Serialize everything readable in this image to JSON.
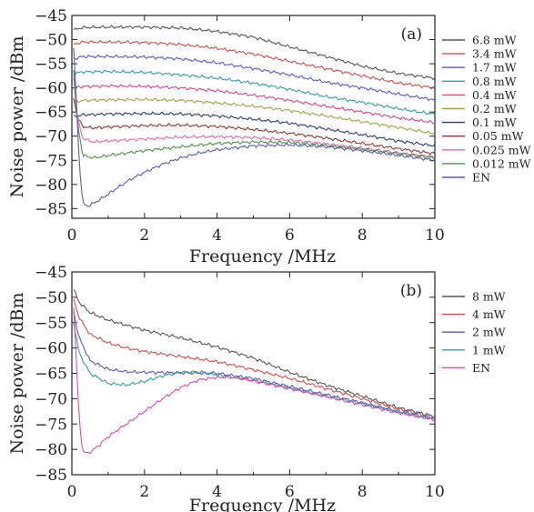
{
  "figure": {
    "panels": [
      "a",
      "b"
    ]
  },
  "chart_data": [
    {
      "type": "line",
      "panel_label": "(a)",
      "xlabel": "Frequency /MHz",
      "ylabel": "Noise power /dBm",
      "xlim": [
        0,
        10
      ],
      "ylim": [
        -87,
        -45
      ],
      "xticks": [
        0,
        2,
        4,
        6,
        8,
        10
      ],
      "yticks": [
        -45,
        -50,
        -55,
        -60,
        -65,
        -70,
        -75,
        -80,
        -85
      ],
      "legend_position": "right, outside plot",
      "series": [
        {
          "name": "6.8 mW",
          "color": "#555555",
          "points": [
            [
              0.05,
              -48
            ],
            [
              0.3,
              -47.5
            ],
            [
              1,
              -47.4
            ],
            [
              2,
              -47.4
            ],
            [
              3,
              -47.6
            ],
            [
              4,
              -48.3
            ],
            [
              5,
              -49.5
            ],
            [
              6,
              -51.5
            ],
            [
              7,
              -53.5
            ],
            [
              8,
              -55.5
            ],
            [
              9,
              -57
            ],
            [
              10,
              -58
            ]
          ]
        },
        {
          "name": "3.4 mW",
          "color": "#c9504f",
          "points": [
            [
              0.05,
              -51
            ],
            [
              0.3,
              -50.5
            ],
            [
              1,
              -50.5
            ],
            [
              2,
              -50.6
            ],
            [
              3,
              -51
            ],
            [
              4,
              -51.8
            ],
            [
              5,
              -53
            ],
            [
              6,
              -54.5
            ],
            [
              7,
              -56
            ],
            [
              8,
              -57.5
            ],
            [
              9,
              -59
            ],
            [
              10,
              -60
            ]
          ]
        },
        {
          "name": "1.7 mW",
          "color": "#5959c0",
          "points": [
            [
              0.05,
              -54
            ],
            [
              0.3,
              -53.5
            ],
            [
              1,
              -53.5
            ],
            [
              2,
              -53.6
            ],
            [
              3,
              -54
            ],
            [
              4,
              -54.8
            ],
            [
              5,
              -56
            ],
            [
              6,
              -57.3
            ],
            [
              7,
              -58.8
            ],
            [
              8,
              -60
            ],
            [
              9,
              -61.3
            ],
            [
              10,
              -62.5
            ]
          ]
        },
        {
          "name": "0.8 mW",
          "color": "#3a9c9c",
          "points": [
            [
              0.05,
              -57
            ],
            [
              0.3,
              -56.7
            ],
            [
              1,
              -56.6
            ],
            [
              2,
              -56.8
            ],
            [
              3,
              -57.3
            ],
            [
              4,
              -58
            ],
            [
              5,
              -59
            ],
            [
              6,
              -60.3
            ],
            [
              7,
              -61.8
            ],
            [
              8,
              -63
            ],
            [
              9,
              -64.3
            ],
            [
              10,
              -65.5
            ]
          ]
        },
        {
          "name": "0.4 mW",
          "color": "#d2488c",
          "points": [
            [
              0.05,
              -60
            ],
            [
              0.3,
              -59.7
            ],
            [
              1,
              -59.6
            ],
            [
              2,
              -59.7
            ],
            [
              3,
              -60
            ],
            [
              4,
              -60.6
            ],
            [
              5,
              -61.5
            ],
            [
              6,
              -62.6
            ],
            [
              7,
              -63.8
            ],
            [
              8,
              -65
            ],
            [
              9,
              -66.2
            ],
            [
              10,
              -67.2
            ]
          ]
        },
        {
          "name": "0.2 mW",
          "color": "#a3a14a",
          "points": [
            [
              0.05,
              -63
            ],
            [
              0.3,
              -62.6
            ],
            [
              1,
              -62.5
            ],
            [
              2,
              -62.4
            ],
            [
              3,
              -62.6
            ],
            [
              4,
              -63.1
            ],
            [
              5,
              -63.8
            ],
            [
              6,
              -64.7
            ],
            [
              7,
              -65.8
            ],
            [
              8,
              -67
            ],
            [
              9,
              -68.2
            ],
            [
              10,
              -69.5
            ]
          ]
        },
        {
          "name": "0.1 mW",
          "color": "#2c3e66",
          "points": [
            [
              0.05,
              -66
            ],
            [
              0.3,
              -65.6
            ],
            [
              1,
              -65.4
            ],
            [
              2,
              -65.3
            ],
            [
              3,
              -65.4
            ],
            [
              4,
              -65.8
            ],
            [
              5,
              -66.5
            ],
            [
              6,
              -67.3
            ],
            [
              7,
              -68.5
            ],
            [
              8,
              -69.7
            ],
            [
              9,
              -71
            ],
            [
              10,
              -72
            ]
          ]
        },
        {
          "name": "0.05 mW",
          "color": "#8b3a3a",
          "points": [
            [
              0.05,
              -62
            ],
            [
              0.15,
              -66
            ],
            [
              0.3,
              -68
            ],
            [
              0.6,
              -68.3
            ],
            [
              1,
              -68.1
            ],
            [
              2,
              -67.8
            ],
            [
              3,
              -67.7
            ],
            [
              4,
              -68
            ],
            [
              5,
              -68.6
            ],
            [
              6,
              -69.4
            ],
            [
              7,
              -70.4
            ],
            [
              8,
              -71.5
            ],
            [
              9,
              -72.6
            ],
            [
              10,
              -73.6
            ]
          ]
        },
        {
          "name": "0.025 mW",
          "color": "#e06aa8",
          "points": [
            [
              0.05,
              -58
            ],
            [
              0.15,
              -66
            ],
            [
              0.3,
              -70.5
            ],
            [
              0.6,
              -71.2
            ],
            [
              1,
              -71
            ],
            [
              2,
              -70.6
            ],
            [
              3,
              -70.2
            ],
            [
              4,
              -70.1
            ],
            [
              5,
              -70.3
            ],
            [
              6,
              -70.8
            ],
            [
              7,
              -71.6
            ],
            [
              8,
              -72.5
            ],
            [
              9,
              -73.5
            ],
            [
              10,
              -74.3
            ]
          ]
        },
        {
          "name": "0.012 mW",
          "color": "#4f8f4f",
          "points": [
            [
              0.05,
              -56
            ],
            [
              0.15,
              -67
            ],
            [
              0.3,
              -74
            ],
            [
              0.6,
              -74.5
            ],
            [
              1,
              -74
            ],
            [
              2,
              -73
            ],
            [
              3,
              -72.2
            ],
            [
              4,
              -71.5
            ],
            [
              5,
              -71.2
            ],
            [
              6,
              -71.3
            ],
            [
              7,
              -71.9
            ],
            [
              8,
              -72.7
            ],
            [
              9,
              -73.6
            ],
            [
              10,
              -74.5
            ]
          ]
        },
        {
          "name": "EN",
          "color": "#5c5ca8",
          "points": [
            [
              0.05,
              -52
            ],
            [
              0.12,
              -62
            ],
            [
              0.2,
              -75
            ],
            [
              0.3,
              -84
            ],
            [
              0.45,
              -84.5
            ],
            [
              0.8,
              -83
            ],
            [
              1.2,
              -81
            ],
            [
              1.6,
              -79
            ],
            [
              2,
              -77.5
            ],
            [
              2.5,
              -75.8
            ],
            [
              3,
              -74.5
            ],
            [
              3.5,
              -73.5
            ],
            [
              4,
              -72.8
            ],
            [
              5,
              -72
            ],
            [
              6,
              -71.8
            ],
            [
              7,
              -72.2
            ],
            [
              8,
              -73
            ],
            [
              9,
              -74
            ],
            [
              10,
              -75
            ]
          ]
        }
      ]
    },
    {
      "type": "line",
      "panel_label": "(b)",
      "xlabel": "Frequency /MHz",
      "ylabel": "Noise power /dBm",
      "xlim": [
        0,
        10
      ],
      "ylim": [
        -85,
        -45
      ],
      "xticks": [
        0,
        2,
        4,
        6,
        8,
        10
      ],
      "yticks": [
        -45,
        -50,
        -55,
        -60,
        -65,
        -70,
        -75,
        -80,
        -85
      ],
      "legend_position": "right, outside plot",
      "series": [
        {
          "name": "8 mW",
          "color": "#555555",
          "points": [
            [
              0.05,
              -48.5
            ],
            [
              0.2,
              -51
            ],
            [
              0.5,
              -53
            ],
            [
              1,
              -54.5
            ],
            [
              1.5,
              -55.5
            ],
            [
              2,
              -56.5
            ],
            [
              3,
              -58
            ],
            [
              4,
              -59.8
            ],
            [
              5,
              -62
            ],
            [
              6,
              -64.8
            ],
            [
              7,
              -67.3
            ],
            [
              8,
              -69.5
            ],
            [
              9,
              -71.8
            ],
            [
              10,
              -73.5
            ]
          ]
        },
        {
          "name": "4 mW",
          "color": "#c9504f",
          "points": [
            [
              0.05,
              -50.5
            ],
            [
              0.2,
              -54
            ],
            [
              0.5,
              -57.3
            ],
            [
              1,
              -59
            ],
            [
              1.5,
              -60
            ],
            [
              2,
              -60.7
            ],
            [
              3,
              -61.7
            ],
            [
              4,
              -62.7
            ],
            [
              5,
              -64.3
            ],
            [
              6,
              -66
            ],
            [
              7,
              -68
            ],
            [
              8,
              -70
            ],
            [
              9,
              -72
            ],
            [
              10,
              -73.8
            ]
          ]
        },
        {
          "name": "2 mW",
          "color": "#5959c0",
          "points": [
            [
              0.05,
              -53
            ],
            [
              0.2,
              -58
            ],
            [
              0.5,
              -62.5
            ],
            [
              1,
              -64.2
            ],
            [
              1.5,
              -64.7
            ],
            [
              2,
              -64.8
            ],
            [
              3,
              -64.9
            ],
            [
              4,
              -65
            ],
            [
              5,
              -66
            ],
            [
              6,
              -67.6
            ],
            [
              7,
              -69.2
            ],
            [
              8,
              -70.8
            ],
            [
              9,
              -72.5
            ],
            [
              10,
              -74
            ]
          ]
        },
        {
          "name": "1 mW",
          "color": "#3a9c9c",
          "points": [
            [
              0.05,
              -55
            ],
            [
              0.2,
              -61
            ],
            [
              0.5,
              -65
            ],
            [
              1,
              -67
            ],
            [
              1.5,
              -67.3
            ],
            [
              2,
              -66.6
            ],
            [
              2.5,
              -65.5
            ],
            [
              3,
              -64.8
            ],
            [
              3.5,
              -64.7
            ],
            [
              4,
              -65.3
            ],
            [
              5,
              -66.4
            ],
            [
              6,
              -67.9
            ],
            [
              7,
              -69.5
            ],
            [
              8,
              -71
            ],
            [
              9,
              -72.6
            ],
            [
              10,
              -74
            ]
          ]
        },
        {
          "name": "EN",
          "color": "#d94fa6",
          "points": [
            [
              0.05,
              -52
            ],
            [
              0.12,
              -62
            ],
            [
              0.2,
              -74
            ],
            [
              0.3,
              -80.5
            ],
            [
              0.45,
              -80.8
            ],
            [
              0.7,
              -79.5
            ],
            [
              1,
              -77.5
            ],
            [
              1.5,
              -75
            ],
            [
              2,
              -72.5
            ],
            [
              2.5,
              -70
            ],
            [
              3,
              -67.8
            ],
            [
              3.5,
              -66.3
            ],
            [
              4,
              -65.8
            ],
            [
              4.5,
              -65.8
            ],
            [
              5,
              -66.5
            ],
            [
              6,
              -68
            ],
            [
              7,
              -69.6
            ],
            [
              8,
              -71.2
            ],
            [
              9,
              -72.8
            ],
            [
              10,
              -74.2
            ]
          ]
        }
      ]
    }
  ]
}
